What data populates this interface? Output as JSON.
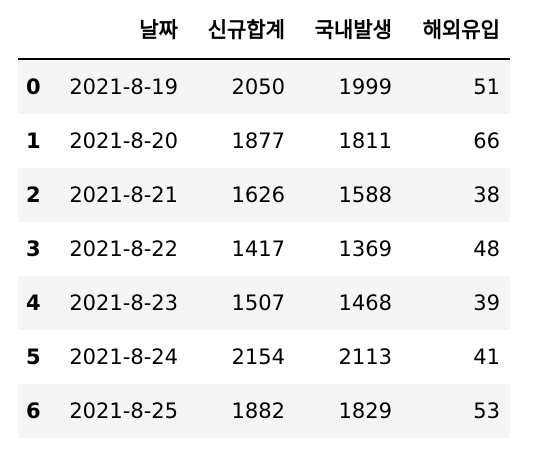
{
  "columns": {
    "index": "",
    "date": "날짜",
    "total": "신규합계",
    "domestic": "국내발생",
    "imported": "해외유입"
  },
  "rows": [
    {
      "index": "0",
      "date": "2021-8-19",
      "total": "2050",
      "domestic": "1999",
      "imported": "51"
    },
    {
      "index": "1",
      "date": "2021-8-20",
      "total": "1877",
      "domestic": "1811",
      "imported": "66"
    },
    {
      "index": "2",
      "date": "2021-8-21",
      "total": "1626",
      "domestic": "1588",
      "imported": "38"
    },
    {
      "index": "3",
      "date": "2021-8-22",
      "total": "1417",
      "domestic": "1369",
      "imported": "48"
    },
    {
      "index": "4",
      "date": "2021-8-23",
      "total": "1507",
      "domestic": "1468",
      "imported": "39"
    },
    {
      "index": "5",
      "date": "2021-8-24",
      "total": "2154",
      "domestic": "2113",
      "imported": "41"
    },
    {
      "index": "6",
      "date": "2021-8-25",
      "total": "1882",
      "domestic": "1829",
      "imported": "53"
    }
  ]
}
